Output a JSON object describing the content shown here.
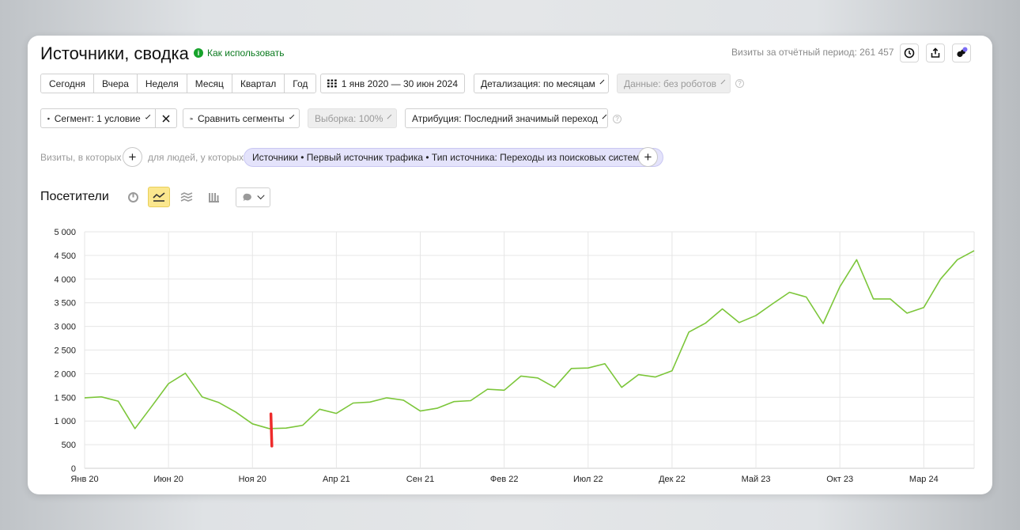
{
  "header": {
    "title": "Источники, сводка",
    "howto_label": "Как использовать",
    "visits_label": "Визиты за отчётный период: 261 457"
  },
  "periods": [
    "Сегодня",
    "Вчера",
    "Неделя",
    "Месяц",
    "Квартал",
    "Год"
  ],
  "date_range": "1 янв 2020 — 30 июн 2024",
  "detail_label": "Детализация: по месяцам",
  "data_label": "Данные: без роботов",
  "segment_label": "Сегмент: 1 условие",
  "compare_label": "Сравнить сегменты",
  "sample_label": "Выборка: 100%",
  "attribution_label": "Атрибуция: Последний значимый переход",
  "filter": {
    "visits_prefix": "Визиты, в которых",
    "people_prefix": "для людей, у которых",
    "tag_text": "Источники • Первый источник трафика • Тип источника: Переходы из поисковых систем"
  },
  "chart_title": "Посетители",
  "colors": {
    "line": "#7cc63a",
    "marker": "#ee2b2b",
    "grid": "#e6e6e6",
    "tag_bg": "#e4e3fb"
  },
  "chart_data": {
    "type": "line",
    "ylim": [
      0,
      5000
    ],
    "yticks": [
      "0",
      "500",
      "1 000",
      "1 500",
      "2 000",
      "2 500",
      "3 000",
      "3 500",
      "4 000",
      "4 500",
      "5 000"
    ],
    "ytick_values": [
      0,
      500,
      1000,
      1500,
      2000,
      2500,
      3000,
      3500,
      4000,
      4500,
      5000
    ],
    "xtick_labels": [
      "Янв 20",
      "Июн 20",
      "Ноя 20",
      "Апр 21",
      "Сен 21",
      "Фев 22",
      "Июл 22",
      "Дек 22",
      "Май 23",
      "Окт 23",
      "Мар 24"
    ],
    "xtick_index": [
      0,
      5,
      10,
      15,
      20,
      25,
      30,
      35,
      40,
      45,
      50
    ],
    "series": [
      {
        "values": [
          1490,
          1510,
          1420,
          840,
          1310,
          1790,
          2010,
          1510,
          1390,
          1190,
          940,
          840,
          850,
          910,
          1250,
          1160,
          1380,
          1400,
          1490,
          1440,
          1210,
          1270,
          1410,
          1430,
          1670,
          1650,
          1950,
          1910,
          1710,
          2110,
          2120,
          2210,
          1710,
          1980,
          1930,
          2060,
          2880,
          3070,
          3370,
          3080,
          3230,
          3480,
          3720,
          3620,
          3060,
          3840,
          4410,
          3580,
          3580,
          3280,
          3400,
          4000,
          4410,
          4600
        ]
      }
    ],
    "annotation_index": 11.1,
    "annotation_range": [
      470,
      1150
    ]
  }
}
